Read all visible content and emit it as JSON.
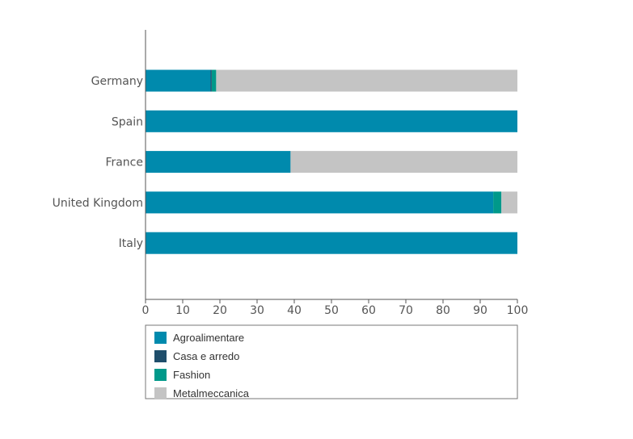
{
  "chart_data": {
    "type": "bar",
    "orientation": "horizontal",
    "stacked": true,
    "categories": [
      "Germany",
      "Spain",
      "France",
      "United Kingdom",
      "Italy"
    ],
    "series": [
      {
        "name": "Agroalimentare",
        "color": "#008aad",
        "values": [
          17.5,
          100,
          39,
          93.5,
          100
        ]
      },
      {
        "name": "Casa e arredo",
        "color": "#1f4e6b",
        "values": [
          0.3,
          0,
          0,
          0,
          0
        ]
      },
      {
        "name": "Fashion",
        "color": "#00998a",
        "values": [
          1.2,
          0,
          0,
          2.2,
          0
        ]
      },
      {
        "name": "Metalmeccanica",
        "color": "#c4c4c4",
        "values": [
          81,
          0,
          61,
          4.3,
          0
        ]
      }
    ],
    "xlim": [
      0,
      100
    ],
    "xticks": [
      "0",
      "10",
      "20",
      "30",
      "40",
      "50",
      "60",
      "70",
      "80",
      "90",
      "100"
    ],
    "xlabel": "",
    "ylabel": "",
    "title": "",
    "legend_position": "bottom",
    "grid": false
  }
}
